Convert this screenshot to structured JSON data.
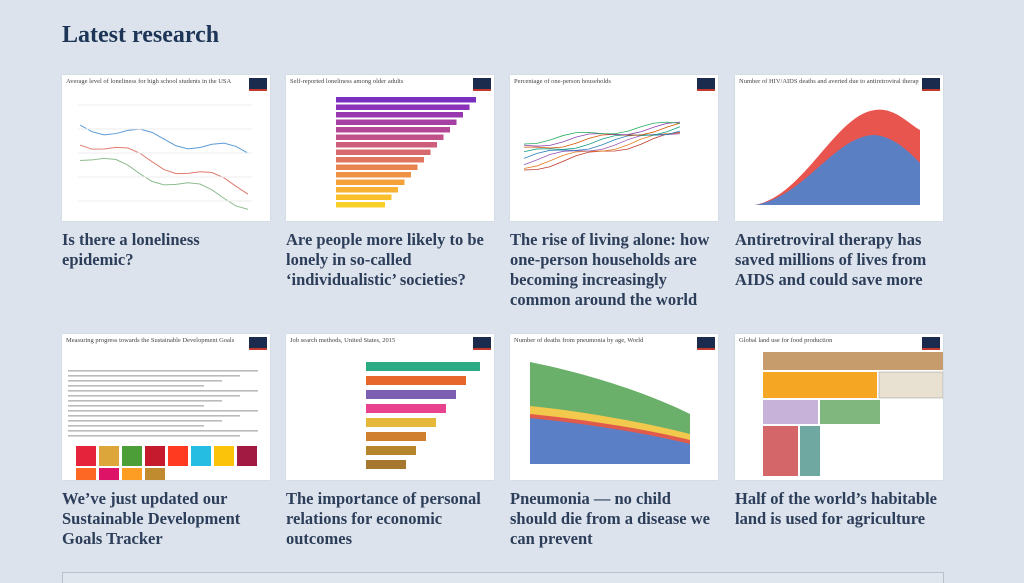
{
  "heading": "Latest research",
  "cards": [
    {
      "thumbnail_title": "Average level of loneliness for high school students in the USA",
      "title": [
        "Is there a loneliness",
        "epidemic?"
      ]
    },
    {
      "thumbnail_title": "Self-reported loneliness among older adults",
      "title": [
        "Are people more likely to be",
        "lonely in so-called",
        "‘individualistic’ societies?"
      ]
    },
    {
      "thumbnail_title": "Percentage of one-person households",
      "title": [
        "The rise of living alone: how",
        "one-person households are",
        "becoming increasingly",
        "common around the world"
      ]
    },
    {
      "thumbnail_title": "Number of HIV/AIDS deaths and averted due to antiretroviral therapy (ART), World",
      "title": [
        "Antiretroviral therapy has",
        "saved millions of lives from",
        "AIDS and could save more"
      ]
    },
    {
      "thumbnail_title": "Measuring progress towards the Sustainable Development Goals",
      "title": [
        "We’ve just updated our",
        "Sustainable Development",
        "Goals Tracker"
      ]
    },
    {
      "thumbnail_title": "Job search methods, United States, 2015",
      "title": [
        "The importance of personal",
        "relations for economic",
        "outcomes"
      ]
    },
    {
      "thumbnail_title": "Number of deaths from pneumonia by age, World",
      "title": [
        "Pneumonia — no child",
        "should die from a disease we",
        "can prevent"
      ]
    },
    {
      "thumbnail_title": "Global land use for food production",
      "title": [
        "Half of the world’s habitable",
        "land is used for agriculture"
      ]
    }
  ]
}
